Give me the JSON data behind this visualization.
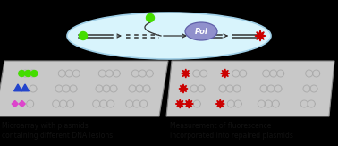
{
  "fig_width": 3.78,
  "fig_height": 1.63,
  "dpi": 100,
  "bg_color": "#000000",
  "ellipse_facecolor": "#d8f4fc",
  "ellipse_edgecolor": "#a0d0e8",
  "pol_facecolor": "#9090cc",
  "pol_edgecolor": "#6060aa",
  "pol_text": "Pol",
  "line_color": "#333333",
  "arrow_color": "#333333",
  "green_color": "#44dd00",
  "red_color": "#cc0000",
  "blue_color": "#2244cc",
  "pink_color": "#dd44cc",
  "plasmid_ring_color": "#999999",
  "panel_facecolor": "#c8c8c8",
  "panel_edgecolor": "#888888",
  "white_color": "#ffffff",
  "label_left": "Microarray with plasmids\ncontaining different DNA lesions",
  "label_right": "Measurement of fluorescence\nincorporated into repaired plasmids",
  "label_fontsize": 5.5,
  "label_color": "#111111"
}
